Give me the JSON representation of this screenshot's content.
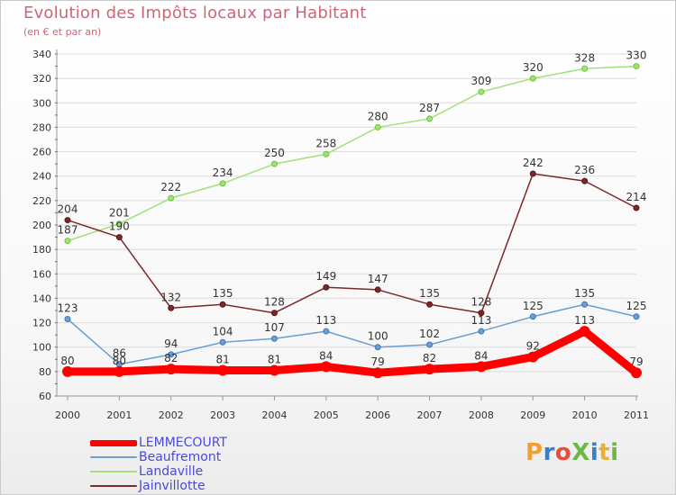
{
  "title": "Evolution des Impôts locaux par Habitant",
  "subtitle": "(en € et par an)",
  "logo": {
    "text": "ProXiti",
    "colors": [
      "#f0a030",
      "#3b7ec8",
      "#e84a3c",
      "#6cb846",
      "#3b7ec8",
      "#e8b030",
      "#6cb846"
    ]
  },
  "chart_data": {
    "type": "line",
    "categories": [
      "2000",
      "2001",
      "2002",
      "2003",
      "2004",
      "2005",
      "2006",
      "2007",
      "2008",
      "2009",
      "2010",
      "2011"
    ],
    "ylim": [
      60,
      340
    ],
    "yticks": [
      60,
      80,
      100,
      120,
      140,
      160,
      180,
      200,
      220,
      240,
      260,
      280,
      300,
      320,
      340
    ],
    "grid": "horizontal",
    "legend_position": "bottom-left",
    "series": [
      {
        "name": "LEMMECOURT",
        "color": "#ff0000",
        "values": [
          80,
          80,
          82,
          81,
          81,
          84,
          79,
          82,
          84,
          92,
          113,
          79
        ]
      },
      {
        "name": "Beaufremont",
        "color": "#6a9fd0",
        "values": [
          123,
          86,
          94,
          104,
          107,
          113,
          100,
          102,
          113,
          125,
          135,
          125
        ]
      },
      {
        "name": "Landaville",
        "color": "#a4e07a",
        "values": [
          187,
          201,
          222,
          234,
          250,
          258,
          280,
          287,
          309,
          320,
          328,
          330
        ]
      },
      {
        "name": "Jainvillotte",
        "color": "#7a2828",
        "values": [
          204,
          190,
          132,
          135,
          128,
          149,
          147,
          135,
          128,
          242,
          236,
          214
        ]
      }
    ]
  }
}
